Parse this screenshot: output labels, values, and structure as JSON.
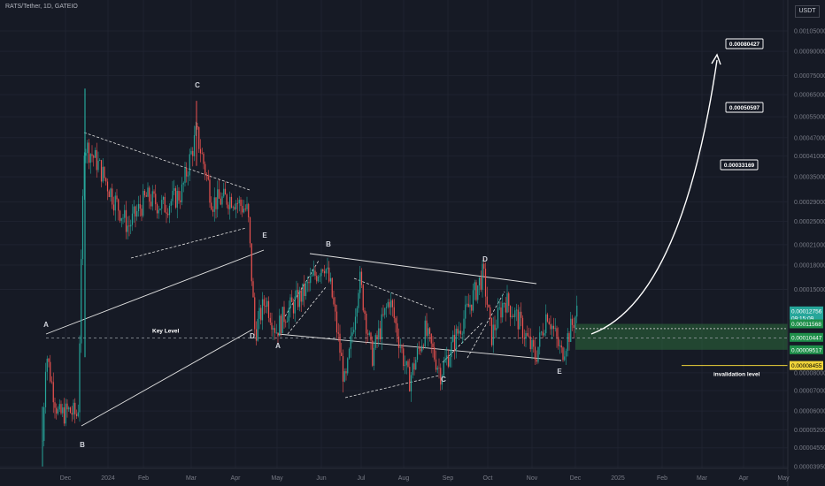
{
  "header": {
    "title": "RATS/Tether, 1D, GATEIO",
    "currency_button": "USDT"
  },
  "colors": {
    "background": "#161a25",
    "up": "#26a69a",
    "down": "#ef5350",
    "grid": "#1f2330",
    "zone": "#2e6b3c",
    "invalidation": "#f0d43a",
    "current_price_bg": "#26a69a"
  },
  "annotations": {
    "key_level": "Key Level",
    "invalidation_level": "invalidation level",
    "targets": [
      "0.00080427",
      "0.00050597",
      "0.00033169"
    ]
  },
  "wave_labels": {
    "first_triangle": [
      "A",
      "B",
      "C",
      "D",
      "E"
    ],
    "second_triangle": [
      "A",
      "B",
      "C",
      "D",
      "E"
    ]
  },
  "price_tags": [
    {
      "value": "0.00012756",
      "sub": "09:15:09",
      "kind": "current"
    },
    {
      "value": "0.00011568",
      "kind": "zone"
    },
    {
      "value": "0.00010447",
      "kind": "zone"
    },
    {
      "value": "0.00009517",
      "kind": "zone"
    },
    {
      "value": "0.00008455",
      "kind": "invalidation"
    }
  ],
  "chart_data": {
    "type": "candlestick",
    "symbol": "RATS/Tether",
    "timeframe": "1D",
    "exchange": "GATEIO",
    "y_scale": "log",
    "y_ticks": [
      "0.00105000",
      "0.00090000",
      "0.00075000",
      "0.00065000",
      "0.00055000",
      "0.00047000",
      "0.00041000",
      "0.00035000",
      "0.00029000",
      "0.00025000",
      "0.00021000",
      "0.00018000",
      "0.00015000",
      "0.00012756",
      "0.00011568",
      "0.00010447",
      "0.00009517",
      "0.00008455",
      "0.00008000",
      "0.00007000",
      "0.00006000",
      "0.00005200",
      "0.00004550",
      "0.00003950"
    ],
    "x_ticks": [
      "Dec",
      "2024",
      "Feb",
      "Mar",
      "Apr",
      "May",
      "Jun",
      "Jul",
      "Aug",
      "Sep",
      "Oct",
      "Nov",
      "Dec",
      "2025",
      "Feb",
      "Mar",
      "Apr",
      "May"
    ],
    "key_level": 0.000104,
    "invalidation": 8.455e-05,
    "zone": [
      9.517e-05,
      0.00011568
    ],
    "last_price": 0.00012756
  }
}
